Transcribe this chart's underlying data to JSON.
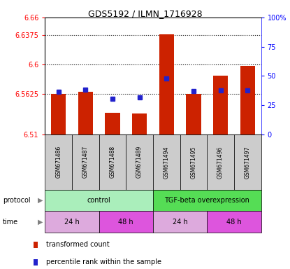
{
  "title": "GDS5192 / ILMN_1716928",
  "samples": [
    "GSM671486",
    "GSM671487",
    "GSM671488",
    "GSM671489",
    "GSM671494",
    "GSM671495",
    "GSM671496",
    "GSM671497"
  ],
  "bar_values": [
    6.5625,
    6.565,
    6.538,
    6.537,
    6.638,
    6.562,
    6.585,
    6.598
  ],
  "percentile_values": [
    0.365,
    0.385,
    0.305,
    0.315,
    0.48,
    0.37,
    0.375,
    0.375
  ],
  "ylim_left": [
    6.51,
    6.66
  ],
  "ylim_right": [
    0.0,
    1.0
  ],
  "yticks_left": [
    6.51,
    6.5625,
    6.6,
    6.6375,
    6.66
  ],
  "ytick_labels_left": [
    "6.51",
    "6.5625",
    "6.6",
    "6.6375",
    "6.66"
  ],
  "yticks_right": [
    0.0,
    0.25,
    0.5,
    0.75,
    1.0
  ],
  "ytick_labels_right": [
    "0",
    "25",
    "50",
    "75",
    "100%"
  ],
  "hlines": [
    6.5625,
    6.6,
    6.6375
  ],
  "bar_color": "#cc2200",
  "dot_color": "#2222cc",
  "bar_bottom": 6.51,
  "protocol_labels": [
    [
      "control",
      0,
      4
    ],
    [
      "TGF-beta overexpression",
      4,
      8
    ]
  ],
  "protocol_colors": [
    "#aaeebb",
    "#55dd55"
  ],
  "time_labels": [
    [
      "24 h",
      0,
      2
    ],
    [
      "48 h",
      2,
      4
    ],
    [
      "24 h",
      4,
      6
    ],
    [
      "48 h",
      6,
      8
    ]
  ],
  "time_colors": [
    "#ddaadd",
    "#dd55dd",
    "#ddaadd",
    "#dd55dd"
  ],
  "sample_box_color": "#cccccc",
  "legend_items": [
    "transformed count",
    "percentile rank within the sample"
  ],
  "legend_colors": [
    "#cc2200",
    "#2222cc"
  ]
}
